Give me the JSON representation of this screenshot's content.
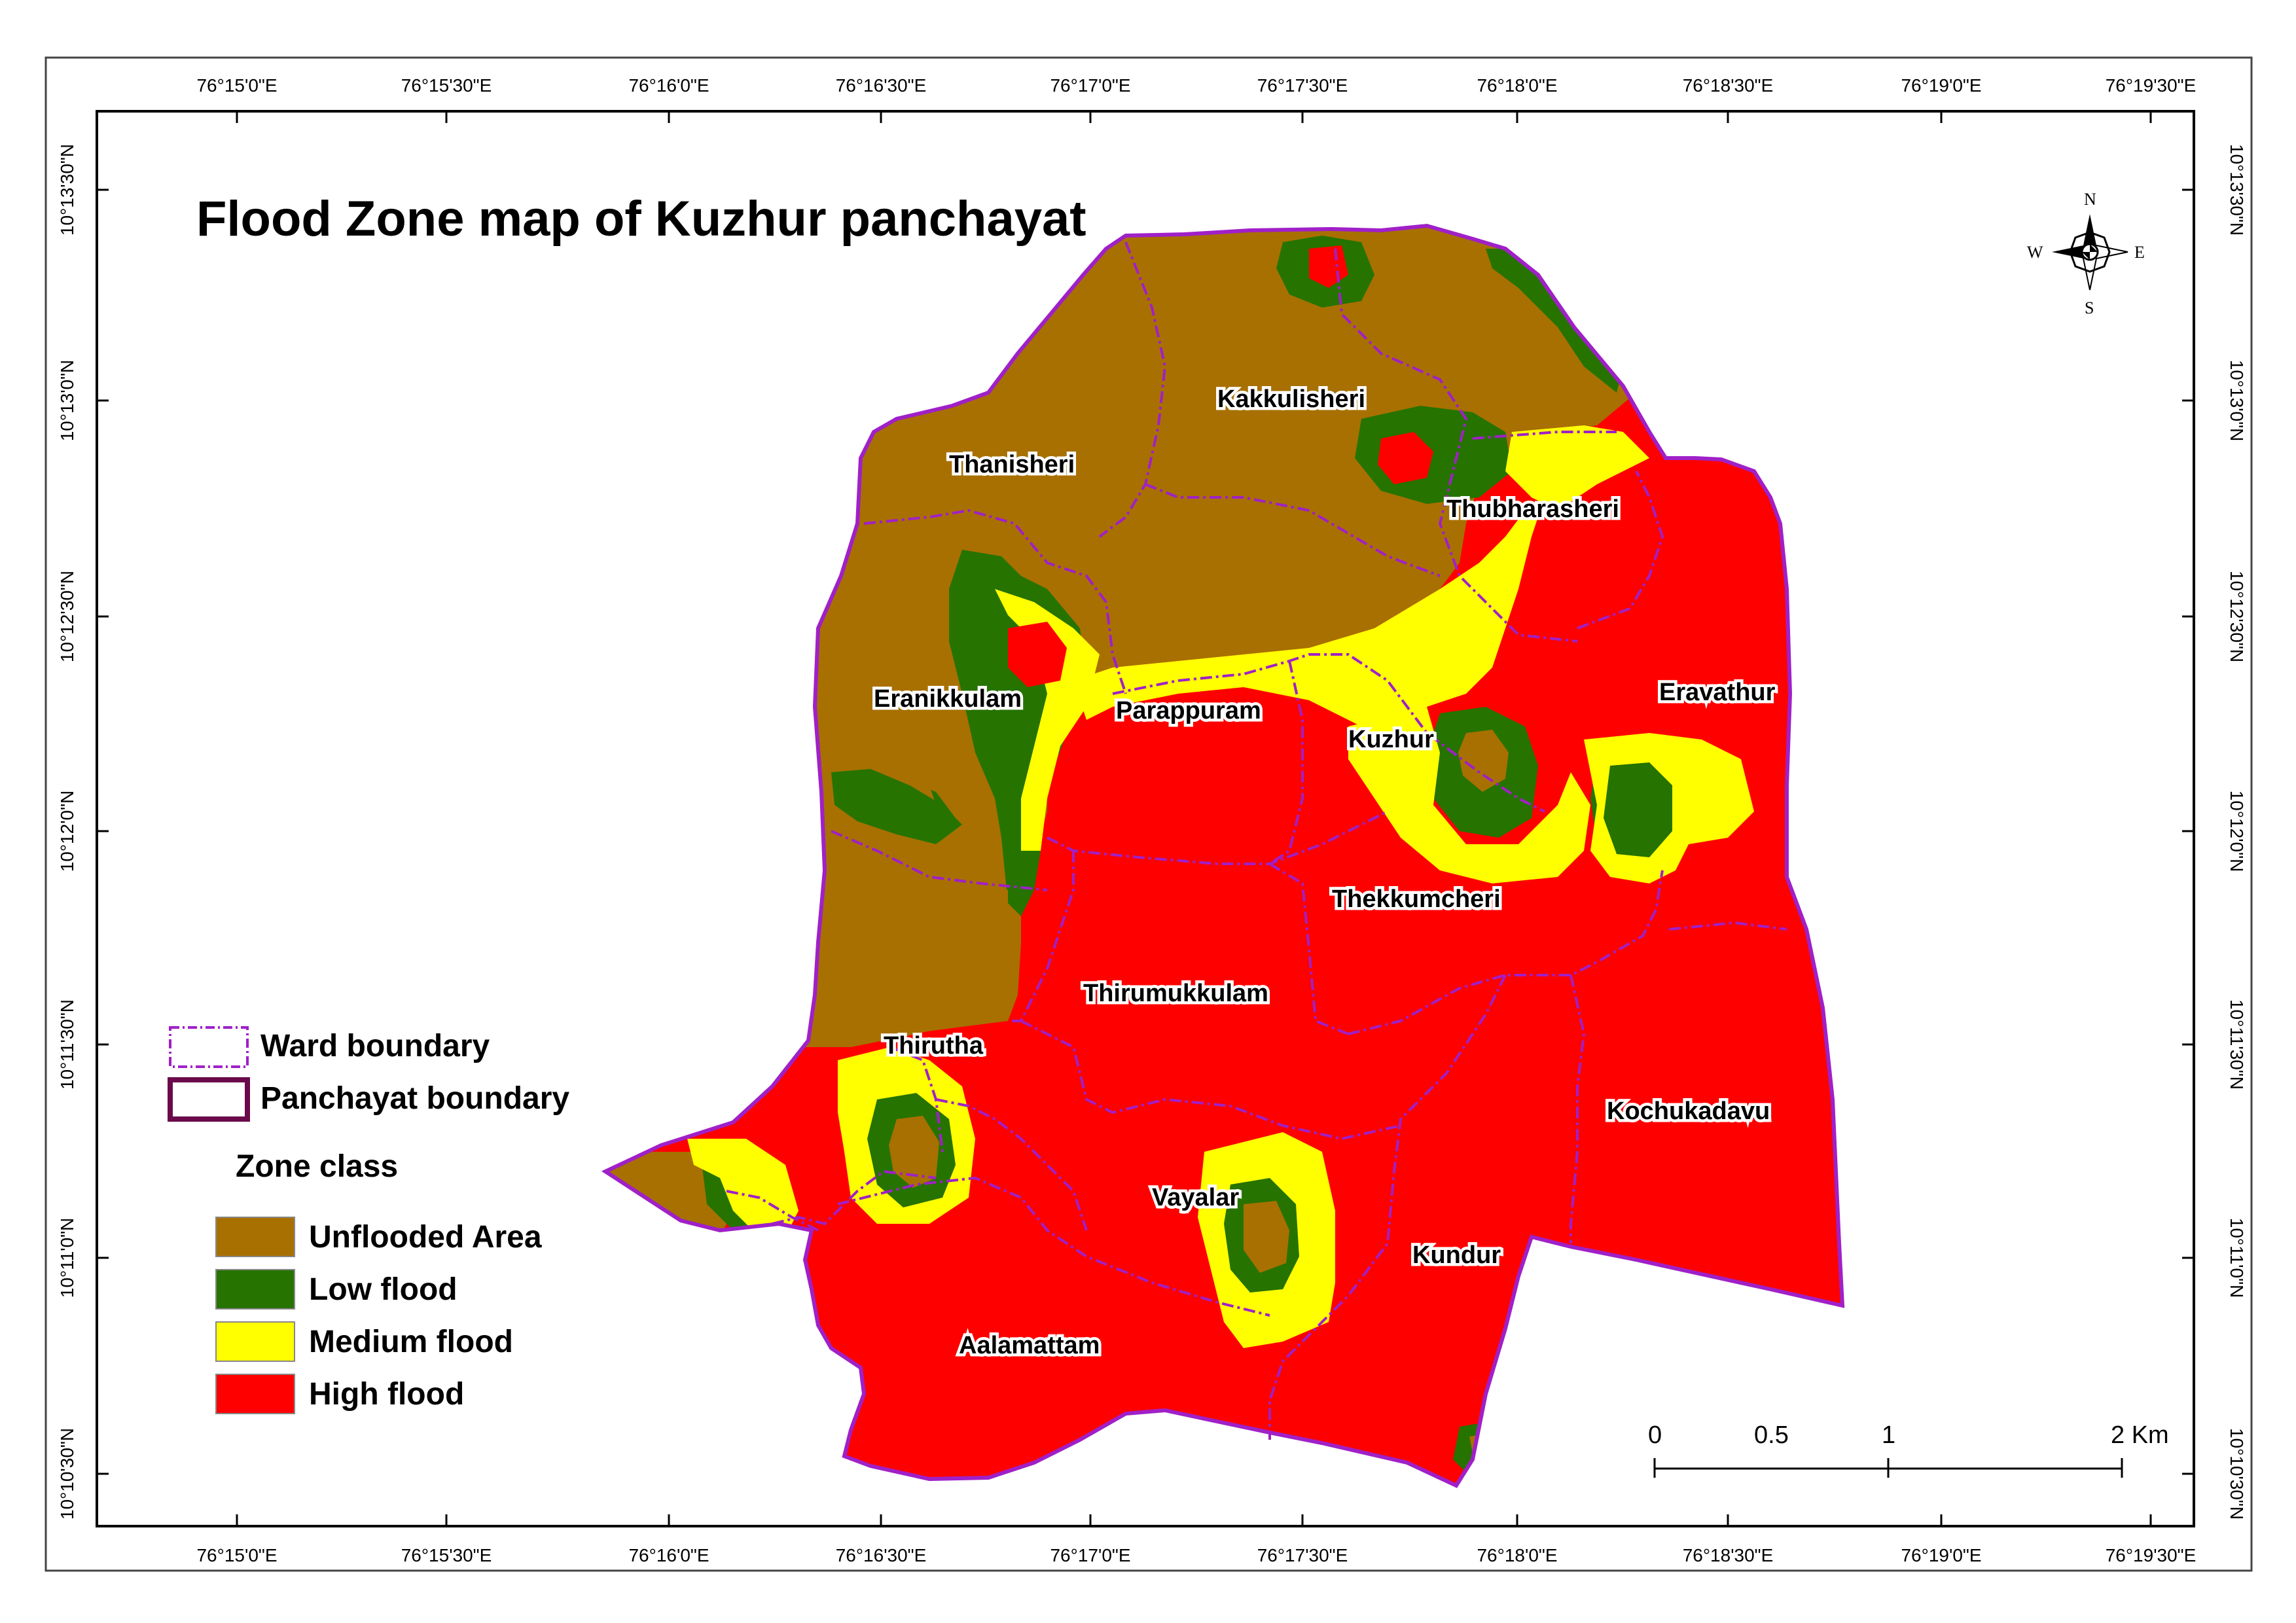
{
  "title": "Flood Zone  map of Kuzhur panchayat",
  "longitude_ticks": [
    "76°15'0\"E",
    "76°15'30\"E",
    "76°16'0\"E",
    "76°16'30\"E",
    "76°17'0\"E",
    "76°17'30\"E",
    "76°18'0\"E",
    "76°18'30\"E",
    "76°19'0\"E",
    "76°19'30\"E"
  ],
  "latitude_ticks": [
    "10°13'30\"N",
    "10°13'0\"N",
    "10°12'30\"N",
    "10°12'0\"N",
    "10°11'30\"N",
    "10°11'0\"N",
    "10°10'30\"N"
  ],
  "wards": [
    "Kakkulisheri",
    "Thanisheri",
    "Thubharasheri",
    "Eranikkulam",
    "Parappuram",
    "Eravathur",
    "Kuzhur",
    "Thekkumcheri",
    "Thirumukkulam",
    "Thirutha",
    "Kochukadavu",
    "Vayalar",
    "Kundur",
    "Aalamattam"
  ],
  "boundary_legend": {
    "ward": "Ward boundary",
    "panchayat": "Panchayat boundary"
  },
  "zone_legend": {
    "heading": "Zone class",
    "classes": [
      {
        "label": "Unflooded Area",
        "color": "#A87000"
      },
      {
        "label": "Low flood",
        "color": "#267300"
      },
      {
        "label": "Medium flood",
        "color": "#FFFF00"
      },
      {
        "label": "High flood",
        "color": "#FF0000"
      }
    ]
  },
  "boundary_colors": {
    "ward": "#A020C8",
    "panchayat": "#6B0A4A"
  },
  "scale_bar": {
    "labels": [
      "0",
      "0.5",
      "1",
      "2 Km"
    ]
  },
  "north_arrow": {
    "n": "N",
    "s": "S",
    "e": "E",
    "w": "W",
    "icon": "compass-rose-icon"
  }
}
